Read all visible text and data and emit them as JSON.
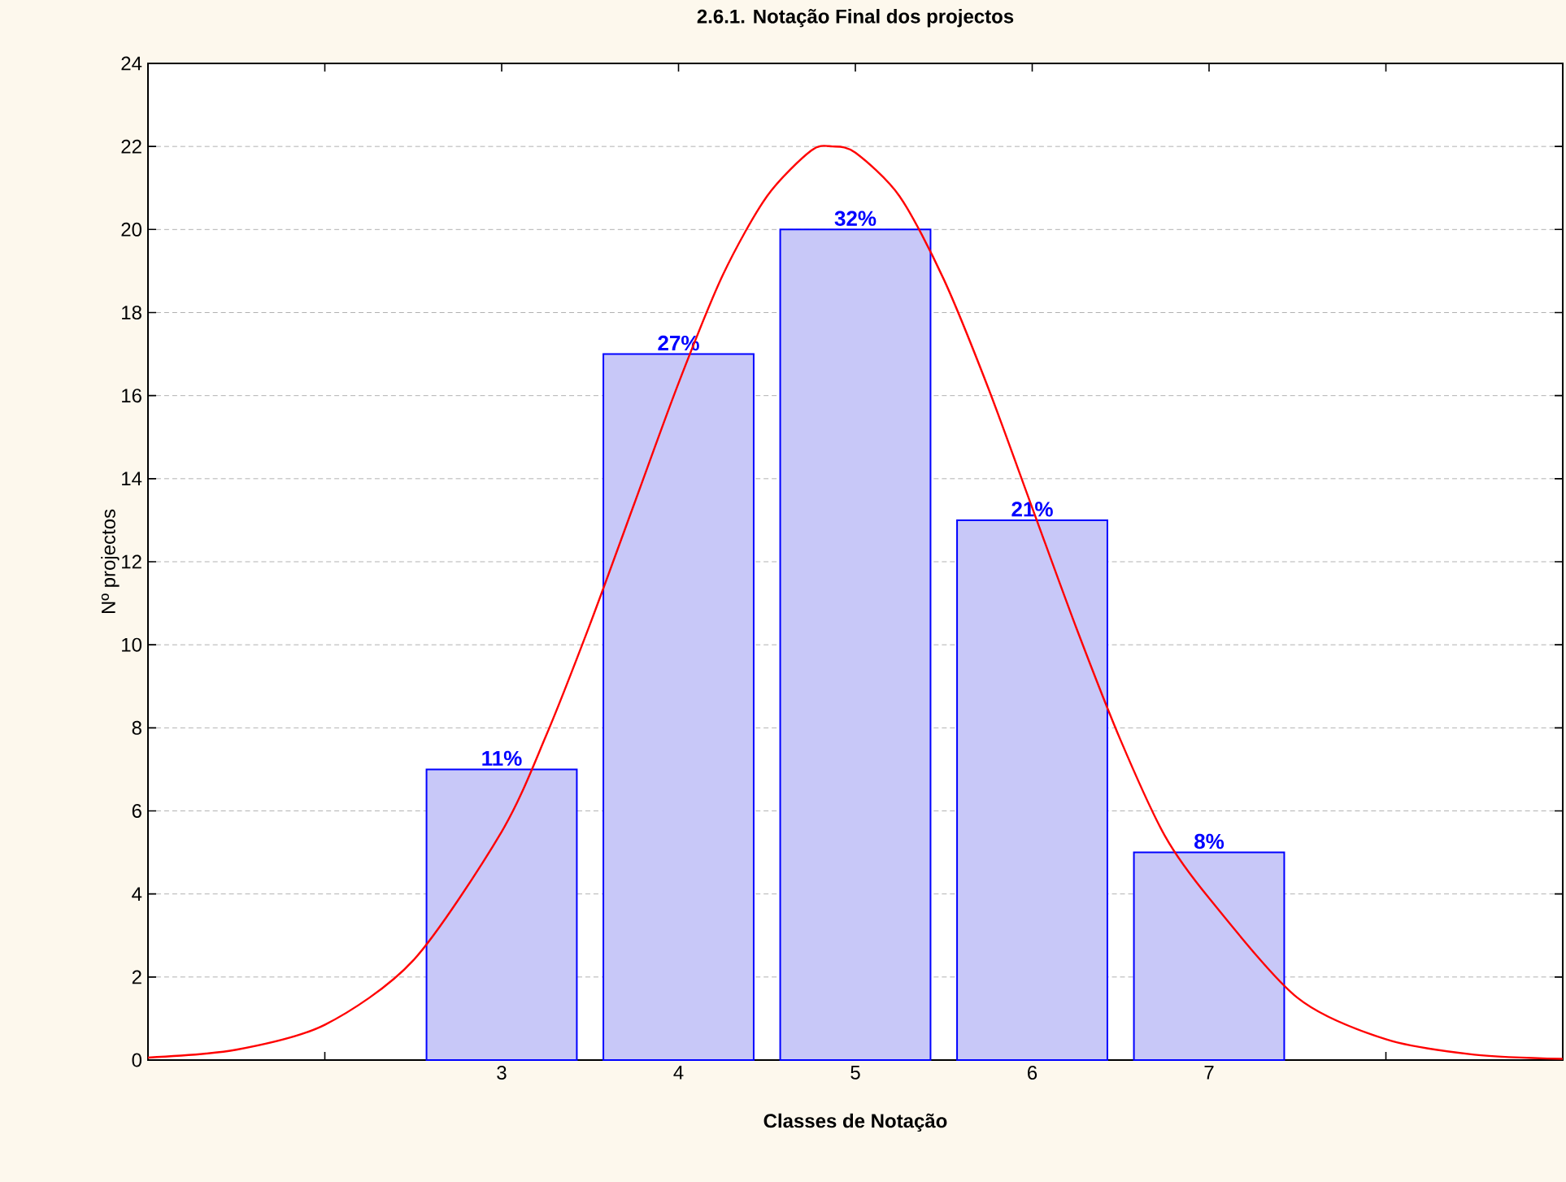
{
  "chart_data": {
    "type": "bar",
    "title": "2.6.1. Notação Final dos projectos",
    "xlabel": "Classes de Notação",
    "ylabel": "Nº projectos",
    "x": [
      3,
      4,
      5,
      6,
      7
    ],
    "series": [
      {
        "color": "#c8c8f8",
        "values": [
          7,
          17,
          20,
          13,
          5
        ]
      },
      {
        "type": "line",
        "color": "#ff0000",
        "marker": "none",
        "x": [
          1,
          1.5,
          2,
          2.5,
          3,
          3.25,
          3.5,
          3.75,
          4,
          4.25,
          4.5,
          4.75,
          4.87,
          5,
          5.25,
          5.5,
          5.75,
          6,
          6.25,
          6.5,
          6.75,
          7,
          7.5,
          8,
          8.5,
          9
        ],
        "values": [
          0.06,
          0.25,
          0.85,
          2.4,
          5.5,
          7.8,
          10.5,
          13.4,
          16.3,
          18.9,
          20.8,
          21.9,
          22,
          21.85,
          20.8,
          18.8,
          16.2,
          13.3,
          10.4,
          7.7,
          5.4,
          3.9,
          1.5,
          0.5,
          0.13,
          0.03
        ]
      }
    ],
    "xlim": [
      1,
      9
    ],
    "xticks": [
      {
        "value": 2,
        "label": null
      },
      3,
      4,
      5,
      6,
      7,
      {
        "value": 8,
        "label": null
      }
    ],
    "ylim": [
      0,
      24
    ],
    "yticks": [
      0,
      2,
      4,
      6,
      8,
      10,
      12,
      14,
      16,
      18,
      20,
      22,
      24
    ],
    "annotations": [
      {
        "text": "11%",
        "x": 3,
        "y": 7
      },
      {
        "text": "27%",
        "x": 4,
        "y": 17
      },
      {
        "text": "32%",
        "x": 5,
        "y": 20
      },
      {
        "text": "21%",
        "x": 6,
        "y": 13
      },
      {
        "text": "8%",
        "x": 7,
        "y": 5
      }
    ],
    "grid": "y"
  }
}
